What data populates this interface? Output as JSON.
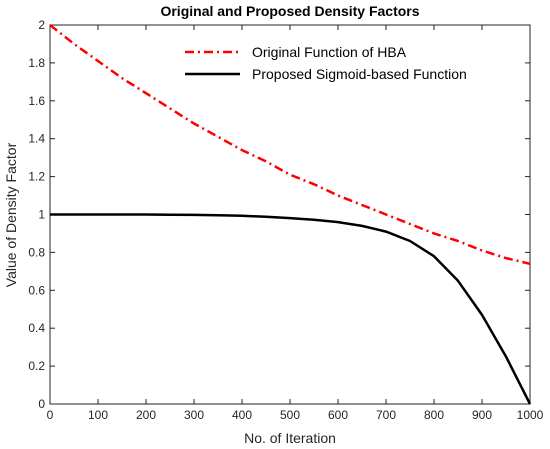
{
  "chart_data": {
    "type": "line",
    "title": "Original and Proposed Density Factors",
    "xlabel": "No. of Iteration",
    "ylabel": "Value of Density Factor",
    "xlim": [
      0,
      1000
    ],
    "ylim": [
      0,
      2
    ],
    "xticks": [
      "0",
      "100",
      "200",
      "300",
      "400",
      "500",
      "600",
      "700",
      "800",
      "900",
      "1000"
    ],
    "yticks": [
      "0",
      "0.2",
      "0.4",
      "0.6",
      "0.8",
      "1",
      "1.2",
      "1.4",
      "1.6",
      "1.8",
      "2"
    ],
    "grid": false,
    "legend_position": "top-right",
    "x": [
      0,
      50,
      100,
      150,
      200,
      250,
      300,
      350,
      400,
      450,
      500,
      550,
      600,
      650,
      700,
      750,
      800,
      850,
      900,
      950,
      1000
    ],
    "series": [
      {
        "name": "Original Function of HBA",
        "color": "#ff0000",
        "style": "dash-dot",
        "values": [
          2.0,
          1.9,
          1.81,
          1.72,
          1.64,
          1.56,
          1.48,
          1.41,
          1.34,
          1.28,
          1.21,
          1.16,
          1.1,
          1.05,
          1.0,
          0.95,
          0.9,
          0.86,
          0.81,
          0.77,
          0.74
        ]
      },
      {
        "name": "Proposed Sigmoid-based Function",
        "color": "#000000",
        "style": "solid",
        "values": [
          1.0,
          1.0,
          1.0,
          1.0,
          1.0,
          0.999,
          0.998,
          0.996,
          0.993,
          0.988,
          0.981,
          0.972,
          0.96,
          0.94,
          0.91,
          0.86,
          0.78,
          0.65,
          0.47,
          0.25,
          0.0
        ]
      }
    ]
  }
}
